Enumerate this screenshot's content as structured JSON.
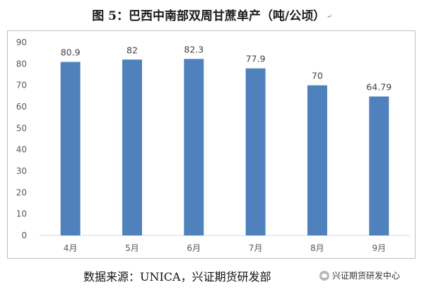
{
  "chart_data": {
    "type": "bar",
    "title": "图 5：巴西中南部双周甘蔗单产（吨/公顷）",
    "categories": [
      "4月",
      "5月",
      "6月",
      "7月",
      "8月",
      "9月"
    ],
    "values": [
      80.9,
      82,
      82.3,
      77.9,
      70,
      64.79
    ],
    "value_labels": [
      "80.9",
      "82",
      "82.3",
      "77.9",
      "70",
      "64.79"
    ],
    "xlabel": "",
    "ylabel": "",
    "ylim": [
      0,
      90
    ],
    "yticks": [
      "0",
      "10",
      "20",
      "30",
      "40",
      "50",
      "60",
      "70",
      "80",
      "90"
    ],
    "grid": false,
    "legend": "none",
    "bar_color": "#4F81BD"
  },
  "title_mark": "↵",
  "source": "数据来源：UNICA，兴证期货研发部",
  "watermark": "兴证期货研发中心"
}
